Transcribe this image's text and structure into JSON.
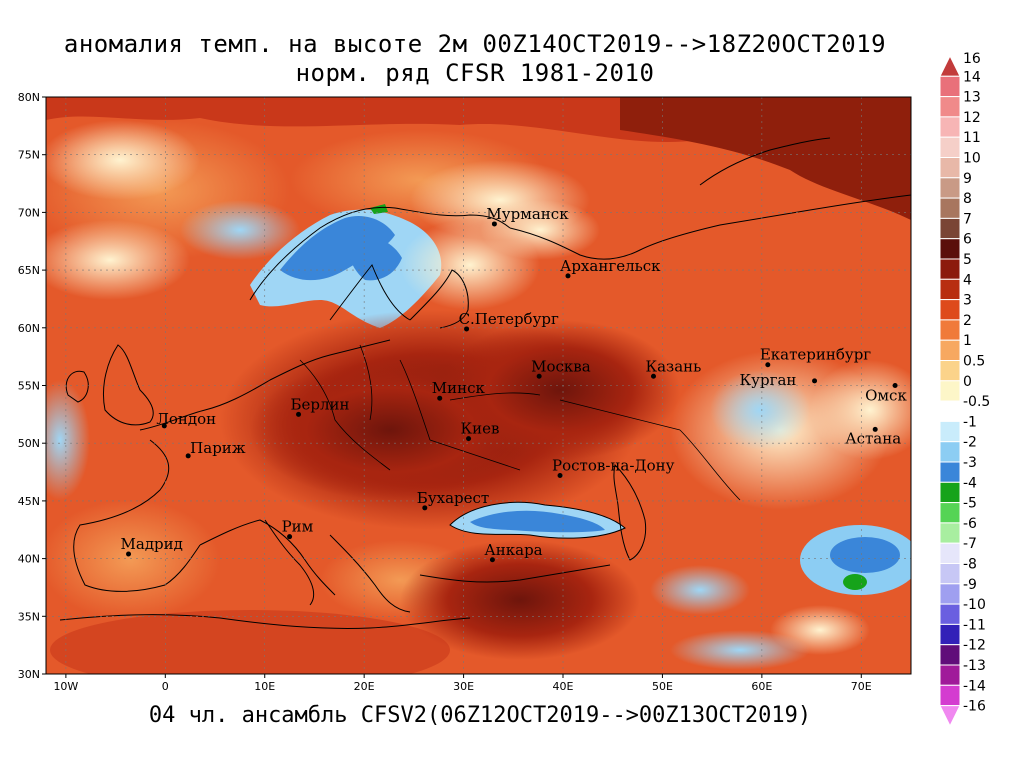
{
  "title_line1": "аномалия темп. на высоте 2м 00Z14OCT2019-->18Z20OCT2019",
  "title_line2": "норм. ряд CFSR 1981-2010",
  "footer": "04 чл. ансамбль CFSV2(06Z12OCT2019-->00Z13OCT2019)",
  "lat_ticks": [
    "80N",
    "75N",
    "70N",
    "65N",
    "60N",
    "55N",
    "50N",
    "45N",
    "40N",
    "35N",
    "30N"
  ],
  "lon_ticks": [
    "10W",
    "0",
    "10E",
    "20E",
    "30E",
    "40E",
    "50E",
    "60E",
    "70E"
  ],
  "cities": [
    {
      "name": "Мурманск",
      "lon": 33.1,
      "lat": 69.0
    },
    {
      "name": "Архангельск",
      "lon": 40.5,
      "lat": 64.5
    },
    {
      "name": "С.Петербург",
      "lon": 30.3,
      "lat": 59.9
    },
    {
      "name": "Москва",
      "lon": 37.6,
      "lat": 55.8
    },
    {
      "name": "Казань",
      "lon": 49.1,
      "lat": 55.8
    },
    {
      "name": "Екатеринбург",
      "lon": 60.6,
      "lat": 56.8
    },
    {
      "name": "Курган",
      "lon": 65.3,
      "lat": 55.4
    },
    {
      "name": "Омск",
      "lon": 73.4,
      "lat": 55.0
    },
    {
      "name": "Астана",
      "lon": 71.4,
      "lat": 51.2
    },
    {
      "name": "Лондон",
      "lon": -0.1,
      "lat": 51.5
    },
    {
      "name": "Париж",
      "lon": 2.3,
      "lat": 48.9
    },
    {
      "name": "Берлин",
      "lon": 13.4,
      "lat": 52.5
    },
    {
      "name": "Минск",
      "lon": 27.6,
      "lat": 53.9
    },
    {
      "name": "Киев",
      "lon": 30.5,
      "lat": 50.4
    },
    {
      "name": "Ростов-на-Дону",
      "lon": 39.7,
      "lat": 47.2
    },
    {
      "name": "Бухарест",
      "lon": 26.1,
      "lat": 44.4
    },
    {
      "name": "Рим",
      "lon": 12.5,
      "lat": 41.9
    },
    {
      "name": "Мадрид",
      "lon": -3.7,
      "lat": 40.4
    },
    {
      "name": "Анкара",
      "lon": 32.9,
      "lat": 39.9
    }
  ],
  "colorbar": [
    {
      "label": "16",
      "color": "#c23b3b"
    },
    {
      "label": "14",
      "color": "#e9707a"
    },
    {
      "label": "13",
      "color": "#f08a8a"
    },
    {
      "label": "12",
      "color": "#f7b5b5"
    },
    {
      "label": "11",
      "color": "#f5cfc8"
    },
    {
      "label": "10",
      "color": "#e8b8a8"
    },
    {
      "label": "9",
      "color": "#c99a86"
    },
    {
      "label": "8",
      "color": "#a8765f"
    },
    {
      "label": "7",
      "color": "#7a4535"
    },
    {
      "label": "6",
      "color": "#5a0f0a"
    },
    {
      "label": "5",
      "color": "#8c1a0c"
    },
    {
      "label": "4",
      "color": "#b82e10"
    },
    {
      "label": "3",
      "color": "#de4a1c"
    },
    {
      "label": "2",
      "color": "#f07a3a"
    },
    {
      "label": "1",
      "color": "#f7a860"
    },
    {
      "label": "0.5",
      "color": "#fbd38a"
    },
    {
      "label": "0",
      "color": "#fdf6c8"
    },
    {
      "label": "-0.5",
      "color": "#ffffff"
    },
    {
      "label": "-1",
      "color": "#c9ecfb"
    },
    {
      "label": "-2",
      "color": "#8ccdf3"
    },
    {
      "label": "-3",
      "color": "#3a86d9"
    },
    {
      "label": "-4",
      "color": "#16a31a"
    },
    {
      "label": "-5",
      "color": "#55d455"
    },
    {
      "label": "-6",
      "color": "#a8eea0"
    },
    {
      "label": "-7",
      "color": "#e6e6fa"
    },
    {
      "label": "-8",
      "color": "#c7c7f5"
    },
    {
      "label": "-9",
      "color": "#9f9ff0"
    },
    {
      "label": "-10",
      "color": "#6a5fe0"
    },
    {
      "label": "-11",
      "color": "#3220b8"
    },
    {
      "label": "-12",
      "color": "#600d7a"
    },
    {
      "label": "-13",
      "color": "#a01a9a"
    },
    {
      "label": "-14",
      "color": "#d43cd0"
    },
    {
      "label": "-16",
      "color": "#f088f0"
    }
  ]
}
